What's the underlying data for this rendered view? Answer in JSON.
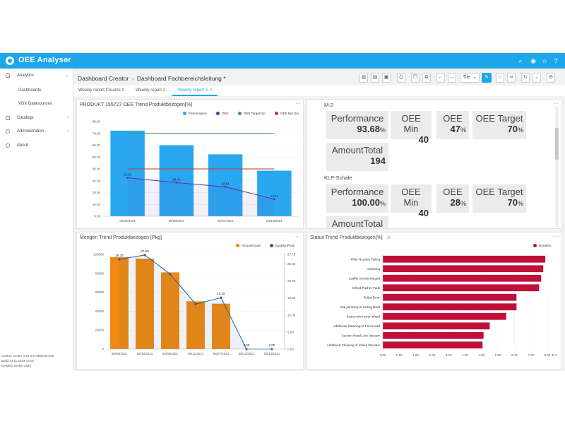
{
  "app": {
    "title": "OEE Analyser",
    "accent": "#1ea7e8"
  },
  "topbar_icons": [
    "search-icon",
    "user-icon",
    "star-icon",
    "help-icon"
  ],
  "sidebar": {
    "items": [
      {
        "label": "Analytics",
        "icon": "chart-icon"
      },
      {
        "label": "Catalogs",
        "icon": "folder-icon"
      },
      {
        "label": "Administration",
        "icon": "gear-icon"
      },
      {
        "label": "About",
        "icon": "info-icon"
      }
    ],
    "subitems": [
      "Dashboards",
      "VDX Datasources"
    ],
    "footer": [
      "Control Center 3.22.0.5+2b8e32ce8a",
      "Build 14.11.2024 12:02",
      "GAMED GmbH 2024"
    ]
  },
  "breadcrumb": {
    "first": "Dashboard Creator",
    "separator": "›",
    "second": "Dashboard Fachbereichsleitung *"
  },
  "toolbar": {
    "select_value": "Tile"
  },
  "tabs": [
    {
      "label": "Weekly report Creams 1"
    },
    {
      "label": "Weekly report 2"
    },
    {
      "label": "Weekly report 3",
      "close": "×"
    }
  ],
  "panels": {
    "p1": {
      "title": "PRODUKT 155727 OEE Trend Produktbezogen[%]"
    },
    "p2": {
      "section1": "M-2",
      "kpis1": [
        {
          "label": "Performance",
          "value": "93.68",
          "unit": "%"
        },
        {
          "label": "OEE Min",
          "value": "40",
          "unit": ""
        },
        {
          "label": "OEE",
          "value": "47",
          "unit": "%"
        },
        {
          "label": "OEE Target",
          "value": "70",
          "unit": "%"
        },
        {
          "label": "AmountTotal",
          "value": "194",
          "unit": ""
        }
      ],
      "section2": "KLP-Schale",
      "kpis2": [
        {
          "label": "Performance",
          "value": "100.00",
          "unit": "%"
        },
        {
          "label": "OEE Min",
          "value": "40",
          "unit": ""
        },
        {
          "label": "OEE",
          "value": "28",
          "unit": "%"
        },
        {
          "label": "OEE Target",
          "value": "70",
          "unit": "%"
        },
        {
          "label": "AmountTotal",
          "value": "",
          "unit": ""
        }
      ]
    },
    "p3": {
      "title": "Mengen Trend Produktbezogen [Pkg]"
    },
    "p4": {
      "title": "Status Trend Produktbezogen[%]"
    }
  },
  "chart_data": [
    {
      "type": "bar",
      "categories": [
        "06/09/2021",
        "06/08/2021",
        "06/07/2021",
        "06/10/2021"
      ],
      "ylim": [
        0,
        80
      ],
      "yticks": [
        "0.00",
        "10.00",
        "20.00",
        "30.00",
        "40.00",
        "50.00",
        "60.00",
        "70.00",
        "80.00"
      ],
      "series": [
        {
          "name": "Performance",
          "kind": "bar",
          "color": "#29a8f0",
          "values": [
            72.3,
            60.0,
            52.3,
            38.5
          ]
        },
        {
          "name": "OEE",
          "kind": "line",
          "color": "#6a2fa8",
          "values": [
            32.53,
            28.42,
            24.84,
            14.43
          ],
          "labels": [
            "32.53",
            "28.42",
            "24.84",
            "14.43"
          ]
        },
        {
          "name": "OEE Target f(x)",
          "kind": "line",
          "color": "#2e9e4f",
          "values": [
            70,
            70,
            70,
            70
          ]
        },
        {
          "name": "OEE Min f(x)",
          "kind": "line",
          "color": "#c0392b",
          "values": [
            40,
            40,
            40,
            40
          ]
        }
      ]
    },
    {
      "type": "bar",
      "categories": [
        "06/08/2021",
        "06/10/2021",
        "06/09/2021",
        "06/11/2021",
        "06/07/2021",
        "06/12/2021",
        "06/13/2021"
      ],
      "ylim": [
        0,
        100000
      ],
      "yticks": [
        "0",
        "20000",
        "40000",
        "60000",
        "80000",
        "100000"
      ],
      "y2lim": [
        0,
        27.78
      ],
      "y2ticks": [
        "0.00",
        "5.00",
        "10.00",
        "15.00",
        "20.00",
        "25.00",
        "27.78"
      ],
      "series": [
        {
          "name": "AmountGood",
          "kind": "bar",
          "color": "#f0890f",
          "values": [
            97000,
            95500,
            81000,
            50500,
            48000,
            0,
            0
          ]
        },
        {
          "name": "DurationProd",
          "kind": "line",
          "color": "#1f5fa8",
          "values": [
            26.33,
            27.6,
            22.0,
            13.2,
            15.1,
            0.0,
            0.0
          ],
          "labels": [
            "26.33",
            "27.60",
            "",
            "",
            "15.10",
            "0.00",
            "0.00"
          ]
        }
      ]
    },
    {
      "type": "bar",
      "orientation": "horizontal",
      "categories": [
        "Filter Nozzles Tailing",
        "Cleaning",
        "Leaflet not discharged",
        "Infeed Pusher Fault",
        "Robot Error",
        "Cap jamming in sorting Bowl",
        "Scara robot error infeed",
        "Additional Cleaning of Print Head",
        "Suction Head Lost Vacuum",
        "Additional Cleaning of Infeed Elevator"
      ],
      "xlim": [
        0,
        8.0
      ],
      "xticks": [
        "0.00",
        "0.80",
        "1.60",
        "2.40",
        "3.20",
        "4.00",
        "4.80",
        "5.60",
        "6.40",
        "7.20",
        "8.00",
        "8.4"
      ],
      "series": [
        {
          "name": "Duration",
          "color": "#c0103a",
          "values": [
            7.9,
            7.8,
            7.7,
            7.6,
            6.5,
            6.5,
            6.0,
            5.2,
            4.9,
            4.85
          ]
        }
      ]
    }
  ]
}
